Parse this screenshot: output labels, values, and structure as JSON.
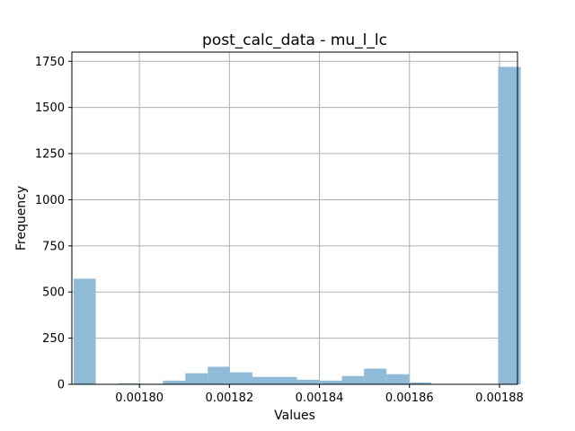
{
  "chart_data": {
    "type": "bar",
    "title": "post_calc_data - mu_l_lc",
    "xlabel": "Values",
    "ylabel": "Frequency",
    "xlim": [
      0.001785,
      0.001884
    ],
    "ylim": [
      0,
      1800
    ],
    "grid": true,
    "bar_color": "#8fbad8",
    "x_ticks": [
      {
        "value": 0.0018,
        "label": "0.00180"
      },
      {
        "value": 0.00182,
        "label": "0.00182"
      },
      {
        "value": 0.00184,
        "label": "0.00184"
      },
      {
        "value": 0.00186,
        "label": "0.00186"
      },
      {
        "value": 0.00188,
        "label": "0.00188"
      }
    ],
    "y_ticks": [
      {
        "value": 0,
        "label": "0"
      },
      {
        "value": 250,
        "label": "250"
      },
      {
        "value": 500,
        "label": "500"
      },
      {
        "value": 750,
        "label": "750"
      },
      {
        "value": 1000,
        "label": "1000"
      },
      {
        "value": 1250,
        "label": "1250"
      },
      {
        "value": 1500,
        "label": "1500"
      },
      {
        "value": 1750,
        "label": "1750"
      }
    ],
    "bin_edges": [
      0.0017854,
      0.0017903,
      0.0017953,
      0.0018003,
      0.0018052,
      0.0018102,
      0.0018152,
      0.0018201,
      0.0018251,
      0.0018301,
      0.001835,
      0.00184,
      0.001845,
      0.0018499,
      0.0018549,
      0.0018599,
      0.0018648,
      0.0018698,
      0.0018748,
      0.0018797,
      0.0018847
    ],
    "values": [
      572,
      0,
      5,
      3,
      20,
      60,
      95,
      65,
      40,
      40,
      25,
      20,
      45,
      85,
      55,
      10,
      0,
      0,
      0,
      1720
    ]
  }
}
